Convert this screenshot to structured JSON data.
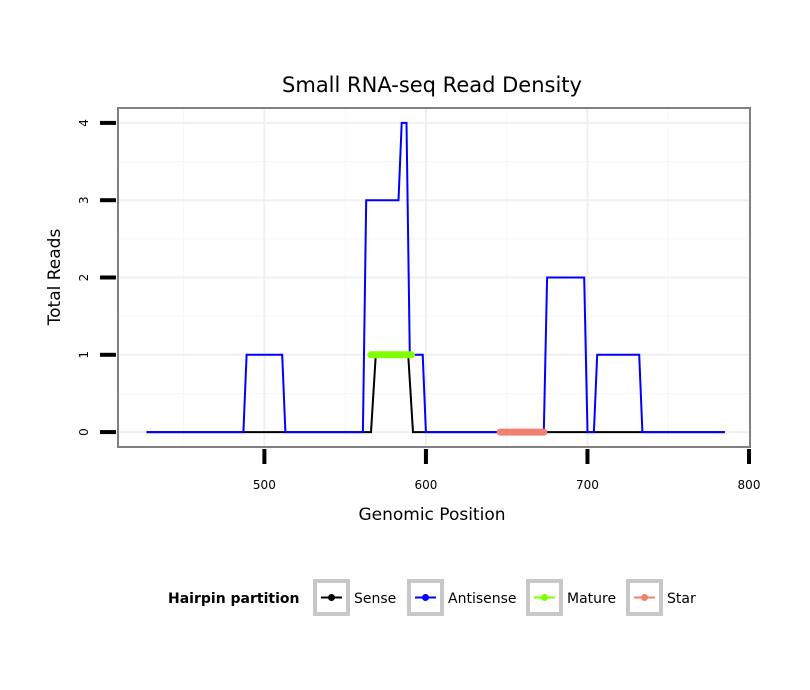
{
  "chart_data": {
    "type": "line",
    "title": "Small RNA-seq Read Density",
    "xlabel": "Genomic Position",
    "ylabel": "Total Reads",
    "xlim": [
      410,
      800
    ],
    "ylim": [
      -0.18,
      4.18
    ],
    "x_ticks": [
      500,
      600,
      700,
      800
    ],
    "y_ticks": [
      0,
      1,
      2,
      3,
      4
    ],
    "x_tick_labels": [
      "500",
      "600",
      "700",
      "800"
    ],
    "y_tick_labels": [
      "0",
      "1",
      "2",
      "3",
      "4"
    ],
    "grid": true,
    "legend": {
      "title": "Hairpin partition",
      "placement": "bottom",
      "entries": [
        "Sense",
        "Antisense",
        "Mature",
        "Star"
      ]
    },
    "series": [
      {
        "name": "Sense",
        "color": "#000000",
        "x": [
          427,
          566,
          569,
          589,
          592,
          785
        ],
        "y": [
          0,
          0,
          1,
          1,
          0,
          0
        ]
      },
      {
        "name": "Antisense",
        "color": "#0000ff",
        "x": [
          427,
          487,
          489,
          511,
          513,
          561,
          563,
          583,
          585,
          588,
          590,
          598,
          600,
          673,
          675,
          698,
          700,
          704,
          706,
          732,
          734,
          785
        ],
        "y": [
          0,
          0,
          1,
          1,
          0,
          0,
          3,
          3,
          4,
          4,
          1,
          1,
          0,
          0,
          2,
          2,
          0,
          0,
          1,
          1,
          0,
          0
        ]
      },
      {
        "name": "Mature",
        "color": "#7fff00",
        "x": [
          566,
          591
        ],
        "y": [
          1,
          1
        ]
      },
      {
        "name": "Star",
        "color": "#f08070",
        "x": [
          646,
          673
        ],
        "y": [
          0,
          0
        ]
      }
    ]
  }
}
